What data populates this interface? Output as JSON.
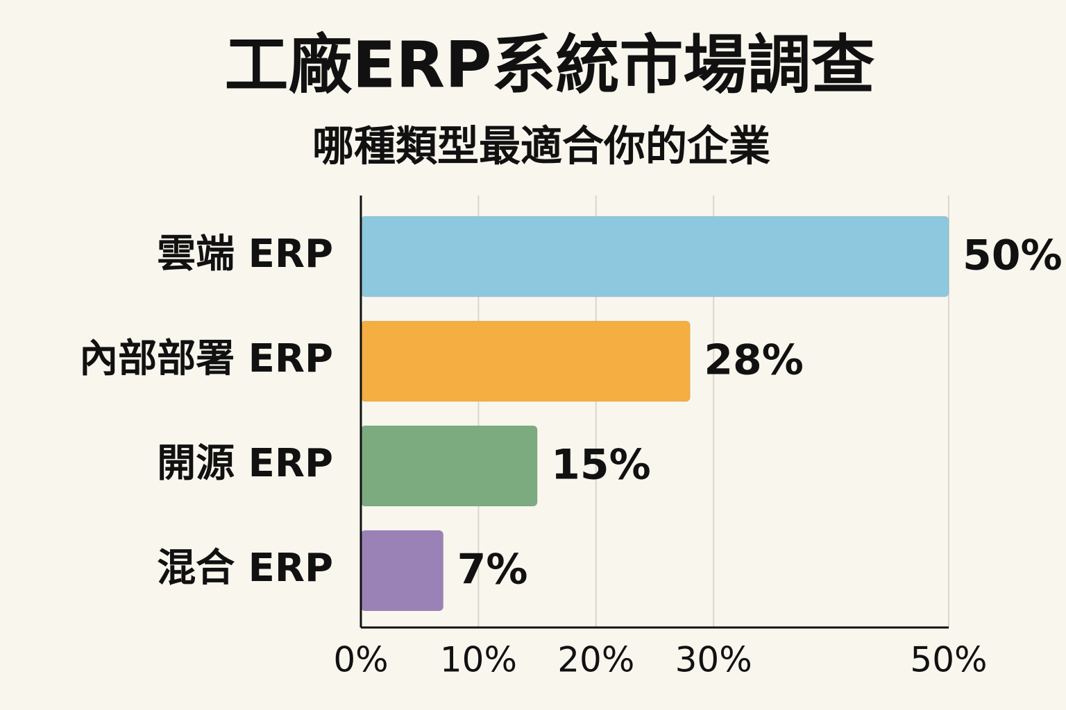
{
  "chart_data": {
    "type": "bar",
    "title": "工廠ERP系統市場調查",
    "subtitle": "哪種類型最適合你的企業",
    "categories": [
      "雲端 ERP",
      "內部部署 ERP",
      "開源 ERP",
      "混合 ERP"
    ],
    "values": [
      50,
      28,
      15,
      7
    ],
    "value_labels": [
      "50%",
      "28%",
      "15%",
      "7%"
    ],
    "colors": [
      "#8ec8df",
      "#f4ae42",
      "#7dab80",
      "#9a82b7"
    ],
    "xlim": [
      0,
      50
    ],
    "xticks": [
      {
        "value": 0,
        "label": "0%"
      },
      {
        "value": 10,
        "label": "10%"
      },
      {
        "value": 20,
        "label": "20%"
      },
      {
        "value": 30,
        "label": "30%"
      },
      {
        "value": 50,
        "label": "50%"
      }
    ],
    "grid": true
  }
}
